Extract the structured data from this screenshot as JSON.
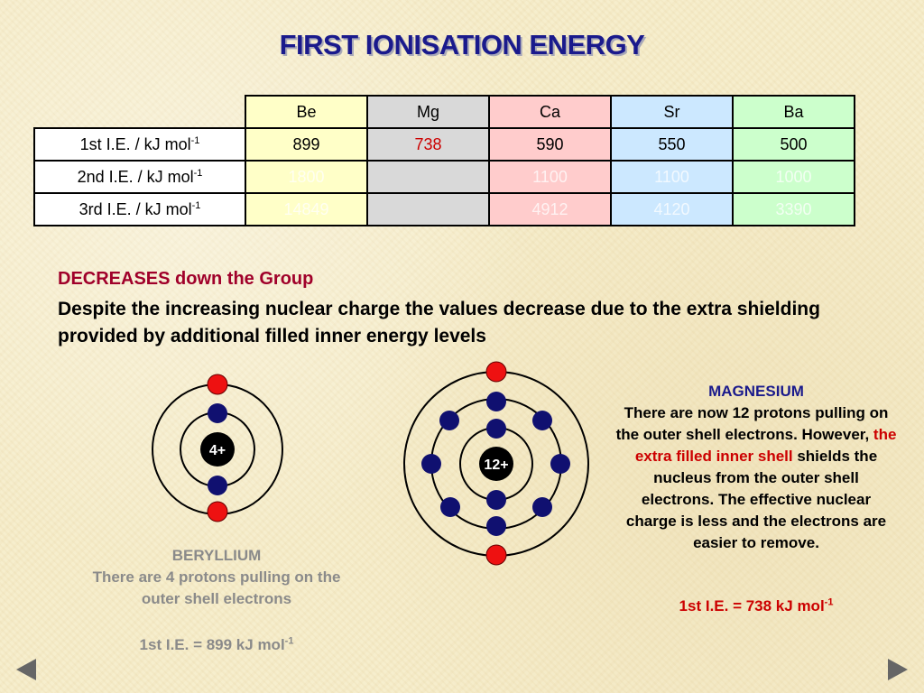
{
  "title": "FIRST IONISATION ENERGY",
  "table": {
    "elements": [
      "Be",
      "Mg",
      "Ca",
      "Sr",
      "Ba"
    ],
    "rows": [
      {
        "label": "1st I.E. / kJ mol",
        "sup": "-1",
        "values": [
          "899",
          "738",
          "590",
          "550",
          "500"
        ]
      },
      {
        "label": "2nd I.E. / kJ mol",
        "sup": "-1",
        "values": [
          "1800",
          "",
          "1100",
          "1100",
          "1000"
        ]
      },
      {
        "label": "3rd I.E. / kJ mol",
        "sup": "-1",
        "values": [
          "14849",
          "",
          "4912",
          "4120",
          "3390"
        ]
      }
    ]
  },
  "trend": {
    "heading": "DECREASES down the Group",
    "body": "Despite the increasing nuclear charge the values decrease due to the extra shielding provided by additional filled inner energy levels"
  },
  "beryllium": {
    "nucleus": "4+",
    "title": "BERYLLIUM",
    "text": "There are 4 protons pulling on the outer shell electrons",
    "ie_text": "1st I.E. = 899 kJ mol",
    "ie_sup": "-1"
  },
  "magnesium": {
    "nucleus": "12+",
    "title": "MAGNESIUM",
    "text_1": "There are now 12 protons pulling on the outer shell electrons. However,",
    "highlight": "the extra filled inner shell",
    "text_2": "shields the nucleus from the outer shell electrons. The effective nuclear charge is less and the electrons are easier to remove.",
    "ie_text": "1st I.E. = 738 kJ mol",
    "ie_sup": "-1"
  },
  "colors": {
    "title": "#1a1a8c",
    "outer_electron": "#ee1111",
    "inner_electron": "#101070",
    "nucleus": "#000000"
  },
  "icons": {
    "prev": "triangle-left-icon",
    "next": "triangle-right-icon"
  }
}
